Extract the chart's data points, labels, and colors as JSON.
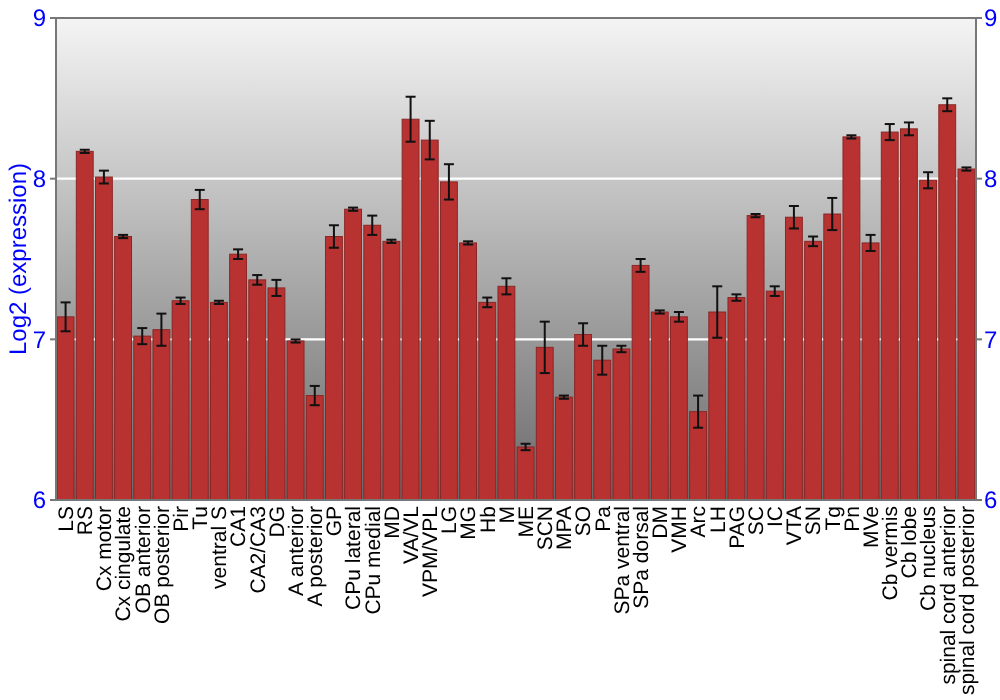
{
  "chart_data": {
    "type": "bar",
    "ylabel": "Log2 (expression)",
    "categories": [
      "LS",
      "RS",
      "Cx motor",
      "Cx cingulate",
      "OB anterior",
      "OB posterior",
      "Pir",
      "Tu",
      "ventral S",
      "CA1",
      "CA2/CA3",
      "DG",
      "A anterior",
      "A posterior",
      "GP",
      "CPu lateral",
      "CPu medial",
      "MD",
      "VA/VL",
      "VPM/VPL",
      "LG",
      "MG",
      "Hb",
      "M",
      "ME",
      "SCN",
      "MPA",
      "SO",
      "Pa",
      "SPa ventral",
      "SPa dorsal",
      "DM",
      "VMH",
      "Arc",
      "LH",
      "PAG",
      "SC",
      "IC",
      "VTA",
      "SN",
      "Tg",
      "Pn",
      "MVe",
      "Cb vermis",
      "Cb lobe",
      "Cb nucleus",
      "spinal cord anterior",
      "spinal cord posterior"
    ],
    "values": [
      7.14,
      8.17,
      8.01,
      7.64,
      7.02,
      7.06,
      7.24,
      7.87,
      7.23,
      7.53,
      7.37,
      7.32,
      6.99,
      6.65,
      7.64,
      7.81,
      7.71,
      7.61,
      8.37,
      8.24,
      7.98,
      7.6,
      7.23,
      7.33,
      6.33,
      6.95,
      6.64,
      7.03,
      6.87,
      6.94,
      7.46,
      7.17,
      7.14,
      6.55,
      7.17,
      7.26,
      7.77,
      7.3,
      7.76,
      7.61,
      7.78,
      8.26,
      7.6,
      8.29,
      8.31,
      7.99,
      8.46,
      8.06
    ],
    "errors": [
      0.09,
      0.01,
      0.04,
      0.01,
      0.05,
      0.1,
      0.02,
      0.06,
      0.01,
      0.03,
      0.03,
      0.05,
      0.01,
      0.06,
      0.07,
      0.01,
      0.06,
      0.01,
      0.14,
      0.12,
      0.11,
      0.01,
      0.03,
      0.05,
      0.02,
      0.16,
      0.01,
      0.07,
      0.09,
      0.02,
      0.04,
      0.01,
      0.03,
      0.1,
      0.16,
      0.02,
      0.01,
      0.03,
      0.07,
      0.03,
      0.1,
      0.01,
      0.05,
      0.05,
      0.04,
      0.05,
      0.04,
      0.01
    ],
    "color": "#b83232",
    "ylim": [
      6,
      9
    ],
    "yticks": [
      6,
      7,
      8,
      9
    ],
    "y2lim": [
      6,
      9
    ],
    "y2ticks": [
      6,
      7,
      8,
      9
    ],
    "grid": "y"
  }
}
